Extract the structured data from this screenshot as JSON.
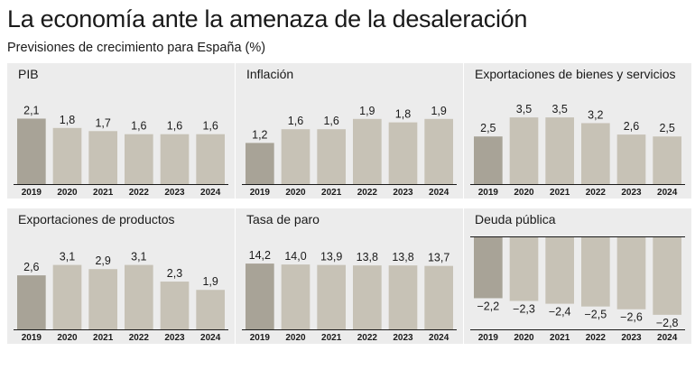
{
  "header": {
    "title": "La economía ante la amenaza de la desaleración",
    "subtitle": "Previsiones de crecimiento para España (%)"
  },
  "colors": {
    "panel_bg": "#ececec",
    "bar_first": "#a8a397",
    "bar": "#c7c2b6",
    "baseline": "#1a1a1a"
  },
  "chart_data": [
    {
      "type": "bar",
      "title": "PIB",
      "categories": [
        "2019",
        "2020",
        "2021",
        "2022",
        "2023",
        "2024"
      ],
      "values": [
        2.1,
        1.8,
        1.7,
        1.6,
        1.6,
        1.6
      ],
      "labels": [
        "2,1",
        "1,8",
        "1,7",
        "1,6",
        "1,6",
        "1,6"
      ],
      "ylim": [
        0,
        2.2
      ]
    },
    {
      "type": "bar",
      "title": "Inflación",
      "categories": [
        "2019",
        "2020",
        "2021",
        "2022",
        "2023",
        "2024"
      ],
      "values": [
        1.2,
        1.6,
        1.6,
        1.9,
        1.8,
        1.9
      ],
      "labels": [
        "1,2",
        "1,6",
        "1,6",
        "1,9",
        "1,8",
        "1,9"
      ],
      "ylim": [
        0,
        2.0
      ]
    },
    {
      "type": "bar",
      "title": "Exportaciones de bienes y servicios",
      "categories": [
        "2019",
        "2020",
        "2021",
        "2022",
        "2023",
        "2024"
      ],
      "values": [
        2.5,
        3.5,
        3.5,
        3.2,
        2.6,
        2.5
      ],
      "labels": [
        "2,5",
        "3,5",
        "3,5",
        "3,2",
        "2,6",
        "2,5"
      ],
      "ylim": [
        0,
        3.6
      ]
    },
    {
      "type": "bar",
      "title": "Exportaciones de productos",
      "categories": [
        "2019",
        "2020",
        "2021",
        "2022",
        "2023",
        "2024"
      ],
      "values": [
        2.6,
        3.1,
        2.9,
        3.1,
        2.3,
        1.9
      ],
      "labels": [
        "2,6",
        "3,1",
        "2,9",
        "3,1",
        "2,3",
        "1,9"
      ],
      "ylim": [
        0,
        3.3
      ]
    },
    {
      "type": "bar",
      "title": "Tasa de paro",
      "categories": [
        "2019",
        "2020",
        "2021",
        "2022",
        "2023",
        "2024"
      ],
      "values": [
        14.2,
        14.0,
        13.9,
        13.8,
        13.8,
        13.7
      ],
      "labels": [
        "14,2",
        "14,0",
        "13,9",
        "13,8",
        "13,8",
        "13,7"
      ],
      "ylim": [
        0,
        14.8
      ]
    },
    {
      "type": "bar",
      "title": "Deuda pública",
      "categories": [
        "2019",
        "2020",
        "2021",
        "2022",
        "2023",
        "2024"
      ],
      "values": [
        -2.2,
        -2.3,
        -2.4,
        -2.5,
        -2.6,
        -2.8
      ],
      "labels": [
        "−2,2",
        "−2,3",
        "−2,4",
        "−2,5",
        "−2,6",
        "−2,8"
      ],
      "ylim": [
        -3.0,
        0
      ]
    }
  ]
}
